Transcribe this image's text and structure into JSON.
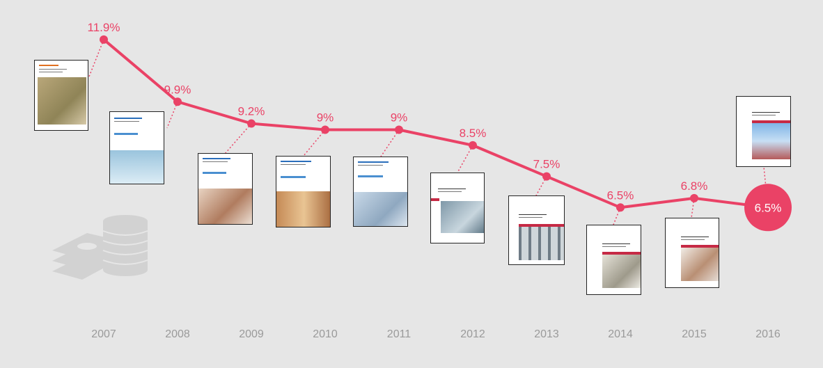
{
  "chart_data": {
    "type": "line",
    "categories": [
      "2007",
      "2008",
      "2009",
      "2010",
      "2011",
      "2012",
      "2013",
      "2014",
      "2015",
      "2016"
    ],
    "values": [
      11.9,
      9.9,
      9.2,
      9.0,
      9.0,
      8.5,
      7.5,
      6.5,
      6.8,
      6.5
    ],
    "labels": [
      "11.9%",
      "9.9%",
      "9.2%",
      "9%",
      "9%",
      "8.5%",
      "7.5%",
      "6.5%",
      "6.8%",
      "6.5%"
    ],
    "highlight_index": 9,
    "ylim": [
      5.5,
      12.5
    ],
    "title": "",
    "xlabel": "",
    "ylabel": "",
    "grid": false,
    "colors": {
      "line": "#ea4266",
      "year_text": "#9a9a9a",
      "background": "#e6e6e6",
      "icon": "#d2d2d2"
    }
  },
  "decorations": {
    "coins_icon": "coins-icon",
    "report_covers": "report-cover-thumbnails"
  }
}
